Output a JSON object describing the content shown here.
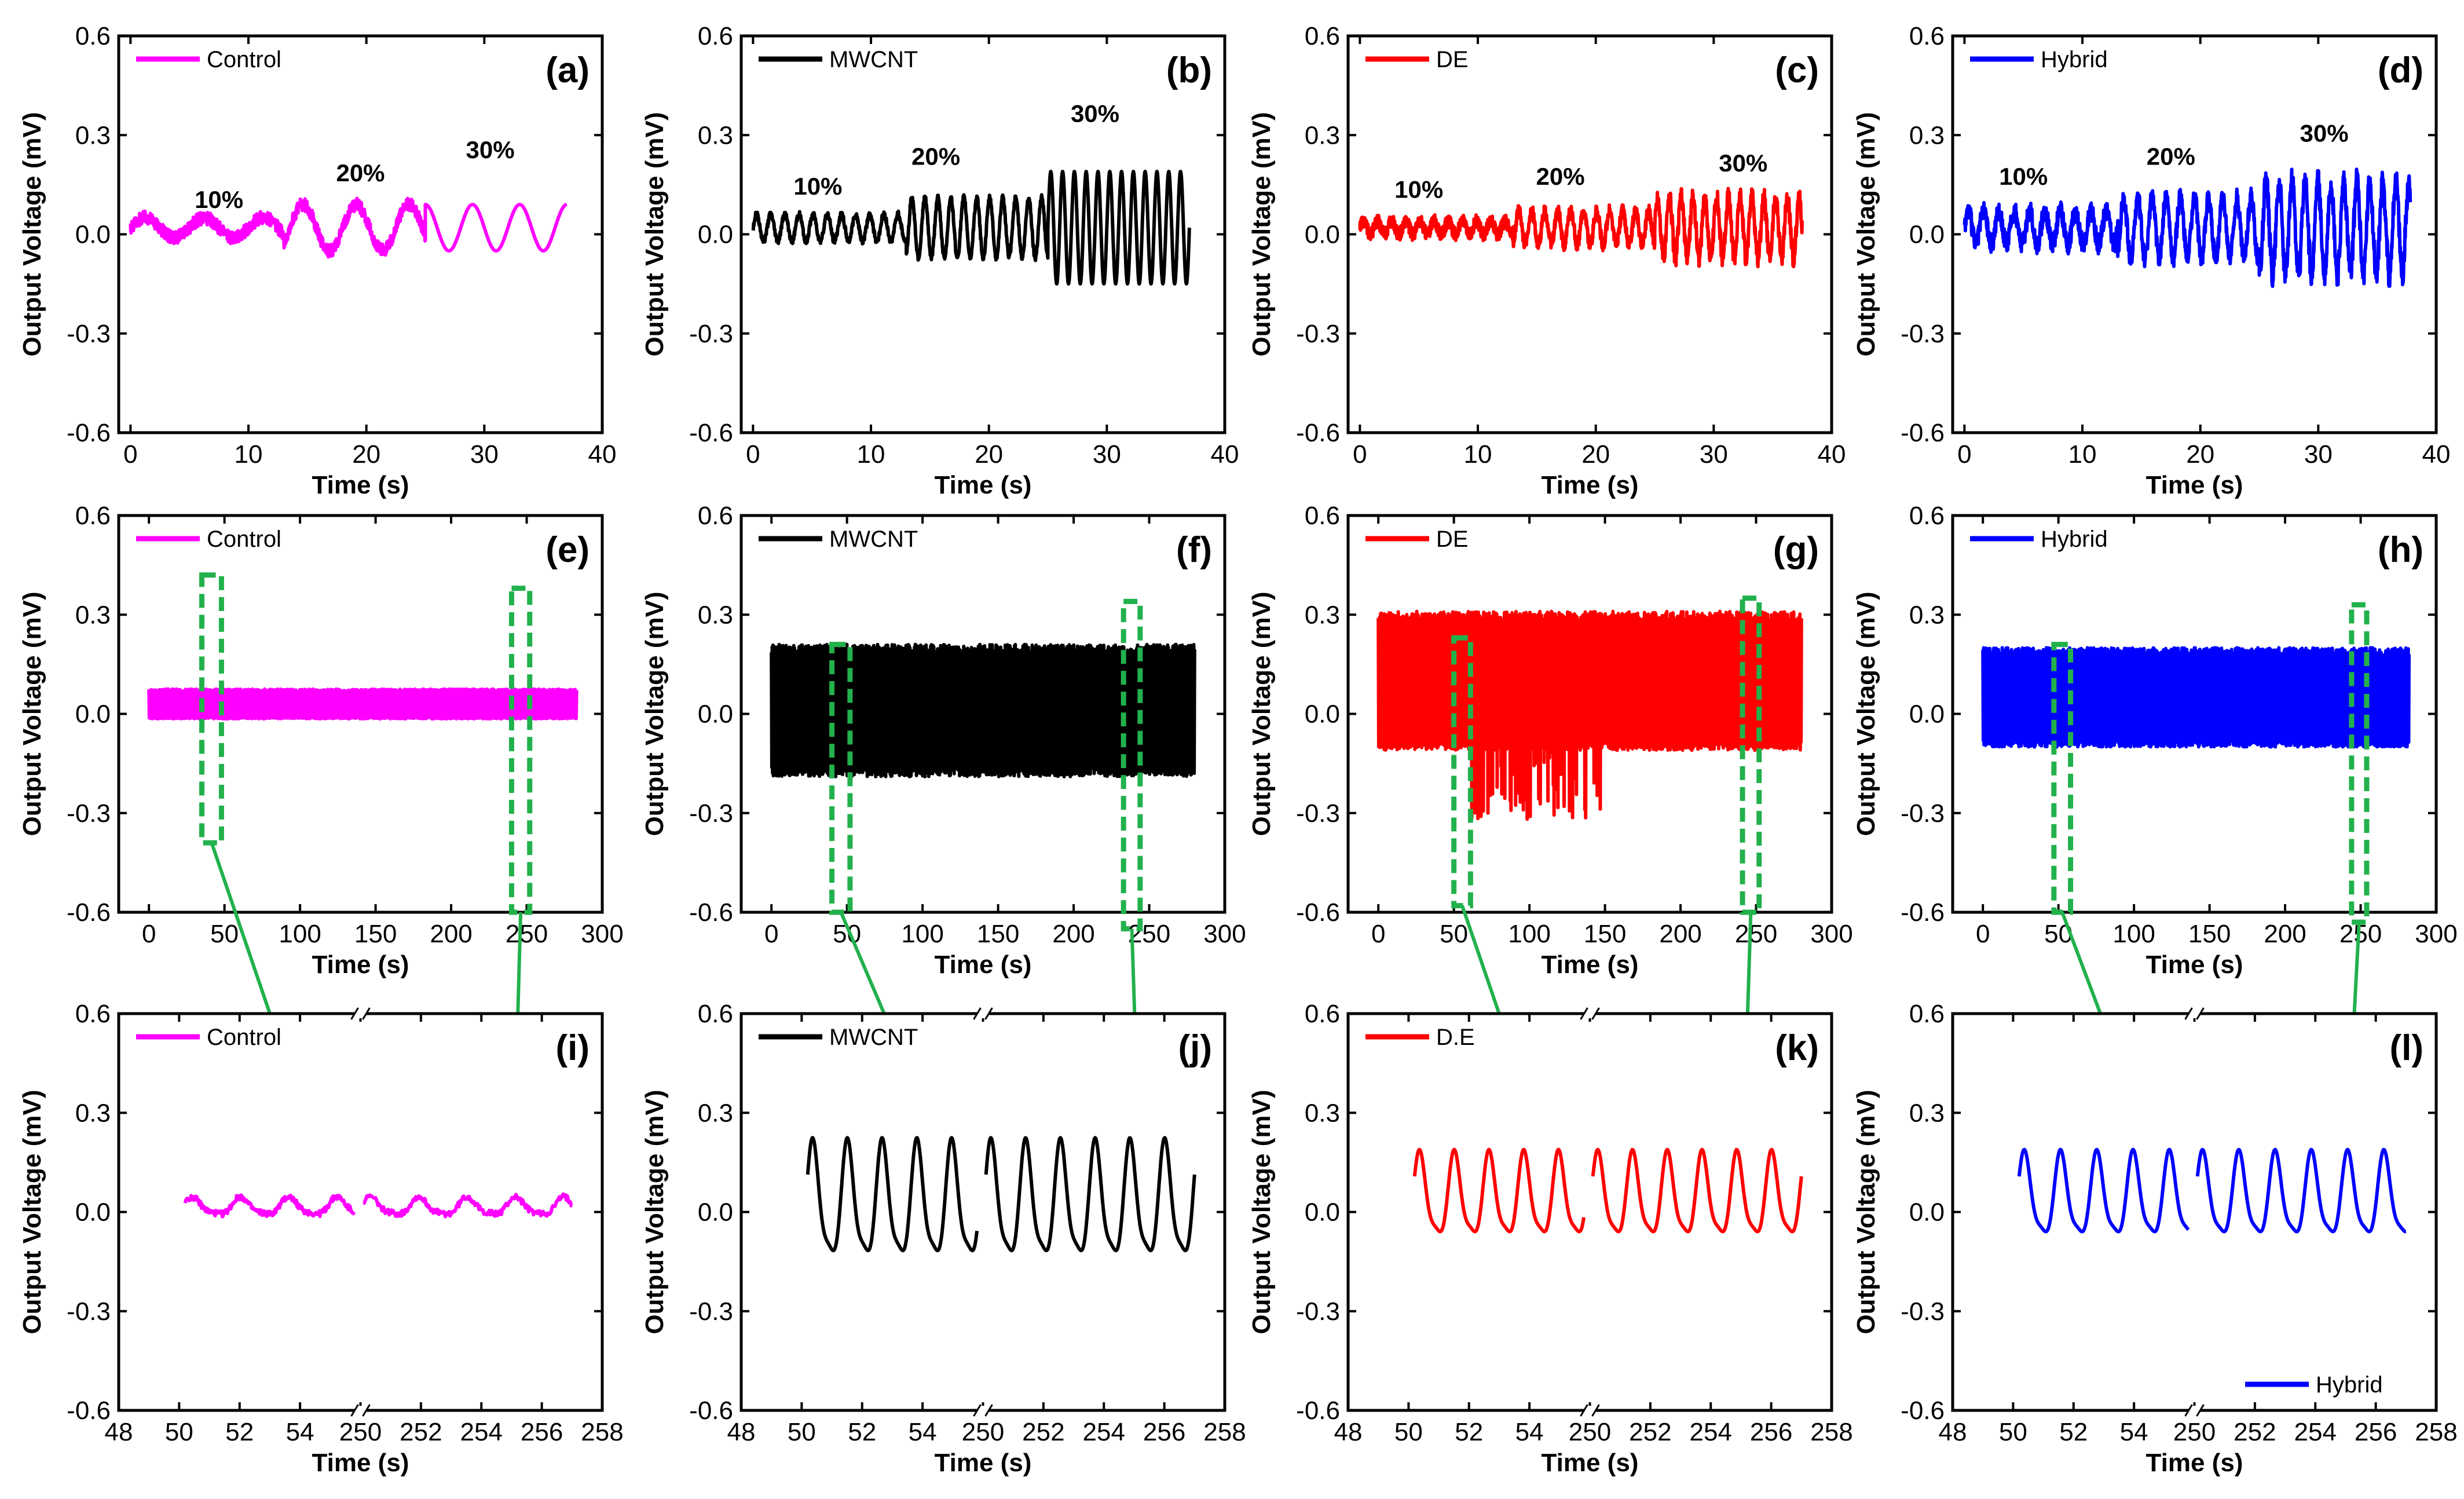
{
  "colors": {
    "Control": "#ff00ff",
    "MWCNT": "#000000",
    "DE": "#ff0000",
    "Hybrid": "#0000ff",
    "zoom": "#22b14c"
  },
  "chart_data": [
    {
      "id": "a",
      "type": "line",
      "panel_label": "(a)",
      "legend": "Control",
      "series_key": "Control",
      "xlabel": "Time (s)",
      "ylabel": "Output Voltage (mV)",
      "xlim": [
        -1,
        40
      ],
      "ylim": [
        -0.6,
        0.6
      ],
      "xticks": [
        0,
        10,
        20,
        30,
        40
      ],
      "yticks": [
        -0.6,
        -0.3,
        0.0,
        0.3,
        0.6
      ],
      "ytick_labels": [
        "-0.6",
        "-0.3",
        "0.0",
        "0.3",
        "0.6"
      ],
      "legend_pos": "top-left",
      "signal": {
        "kind": "ramp",
        "t0": 0,
        "t1": 37,
        "segments": [
          [
            0,
            13,
            5,
            0.03,
            0.02
          ],
          [
            13,
            25,
            4.5,
            0.07,
            0.02
          ],
          [
            25,
            37,
            4,
            0.07,
            0.0
          ]
        ]
      },
      "annotations": [
        {
          "text": "10%",
          "x": 7.5,
          "y": 0.08
        },
        {
          "text": "20%",
          "x": 19.5,
          "y": 0.16
        },
        {
          "text": "30%",
          "x": 30.5,
          "y": 0.23
        }
      ]
    },
    {
      "id": "b",
      "type": "line",
      "panel_label": "(b)",
      "legend": "MWCNT",
      "series_key": "MWCNT",
      "xlabel": "Time (s)",
      "ylabel": "Output Voltage (mV)",
      "xlim": [
        -1,
        40
      ],
      "ylim": [
        -0.6,
        0.6
      ],
      "xticks": [
        0,
        10,
        20,
        30,
        40
      ],
      "yticks": [
        -0.6,
        -0.3,
        0.0,
        0.3,
        0.6
      ],
      "ytick_labels": [
        "-0.6",
        "-0.3",
        "0.0",
        "0.3",
        "0.6"
      ],
      "legend_pos": "top-left",
      "signal": {
        "kind": "ramp",
        "t0": 0,
        "t1": 37,
        "segments": [
          [
            0,
            13,
            1.2,
            0.04,
            0.01
          ],
          [
            13,
            25,
            1.1,
            0.09,
            0.01
          ],
          [
            25,
            37,
            1.0,
            0.17,
            0.0
          ]
        ]
      },
      "annotations": [
        {
          "text": "10%",
          "x": 5.5,
          "y": 0.12
        },
        {
          "text": "20%",
          "x": 15.5,
          "y": 0.21
        },
        {
          "text": "30%",
          "x": 29,
          "y": 0.34
        }
      ]
    },
    {
      "id": "c",
      "type": "line",
      "panel_label": "(c)",
      "legend": "DE",
      "series_key": "DE",
      "xlabel": "Time (s)",
      "ylabel": "Output Voltage (mV)",
      "xlim": [
        -1,
        40
      ],
      "ylim": [
        -0.6,
        0.6
      ],
      "xticks": [
        0,
        10,
        20,
        30,
        40
      ],
      "yticks": [
        -0.6,
        -0.3,
        0.0,
        0.3,
        0.6
      ],
      "ytick_labels": [
        "-0.6",
        "-0.3",
        "0.0",
        "0.3",
        "0.6"
      ],
      "legend_pos": "top-left",
      "signal": {
        "kind": "ramp",
        "t0": 0,
        "t1": 37.5,
        "segments": [
          [
            0,
            13,
            1.2,
            0.02,
            0.02
          ],
          [
            13,
            25,
            1.1,
            0.05,
            0.02
          ],
          [
            25,
            37.5,
            1.0,
            0.09,
            0.03
          ]
        ]
      },
      "annotations": [
        {
          "text": "10%",
          "x": 5,
          "y": 0.11
        },
        {
          "text": "20%",
          "x": 17,
          "y": 0.15
        },
        {
          "text": "30%",
          "x": 32.5,
          "y": 0.19
        }
      ]
    },
    {
      "id": "d",
      "type": "line",
      "panel_label": "(d)",
      "legend": "Hybrid",
      "series_key": "Hybrid",
      "xlabel": "Time (s)",
      "ylabel": "Output Voltage (mV)",
      "xlim": [
        -1,
        40
      ],
      "ylim": [
        -0.6,
        0.6
      ],
      "xticks": [
        0,
        10,
        20,
        30,
        40
      ],
      "yticks": [
        -0.6,
        -0.3,
        0.0,
        0.3,
        0.6
      ],
      "ytick_labels": [
        "-0.6",
        "-0.3",
        "0.0",
        "0.3",
        "0.6"
      ],
      "legend_pos": "top-left",
      "signal": {
        "kind": "ramp",
        "t0": 0,
        "t1": 37.8,
        "segments": [
          [
            0,
            13,
            1.3,
            0.05,
            0.03
          ],
          [
            13,
            25,
            1.2,
            0.09,
            0.03
          ],
          [
            25,
            37.8,
            1.1,
            0.14,
            0.04
          ]
        ]
      },
      "annotations": [
        {
          "text": "10%",
          "x": 5,
          "y": 0.15
        },
        {
          "text": "20%",
          "x": 17.5,
          "y": 0.21
        },
        {
          "text": "30%",
          "x": 30.5,
          "y": 0.28
        }
      ]
    },
    {
      "id": "e",
      "type": "line",
      "panel_label": "(e)",
      "legend": "Control",
      "series_key": "Control",
      "xlabel": "Time (s)",
      "ylabel": "Output Voltage (mV)",
      "xlim": [
        -20,
        300
      ],
      "ylim": [
        -0.6,
        0.6
      ],
      "xticks": [
        0,
        50,
        100,
        150,
        200,
        250,
        300
      ],
      "yticks": [
        -0.6,
        -0.3,
        0.0,
        0.3,
        0.6
      ],
      "ytick_labels": [
        "-0.6",
        "-0.3",
        "0.0",
        "0.3",
        "0.6"
      ],
      "legend_pos": "top-left",
      "signal": {
        "kind": "dense",
        "t0": 0,
        "t1": 283,
        "center": 0.025,
        "amp_hi": 0.05,
        "amp_lo": 0.04
      },
      "zoom_boxes": [
        {
          "x0": 35,
          "x1": 48,
          "y0": -0.39,
          "y1": 0.42
        },
        {
          "x0": 240,
          "x1": 252,
          "y0": -0.6,
          "y1": 0.38
        }
      ]
    },
    {
      "id": "f",
      "type": "line",
      "panel_label": "(f)",
      "legend": "MWCNT",
      "series_key": "MWCNT",
      "xlabel": "Time (s)",
      "ylabel": "Output Voltage (mV)",
      "xlim": [
        -20,
        300
      ],
      "ylim": [
        -0.6,
        0.6
      ],
      "xticks": [
        0,
        50,
        100,
        150,
        200,
        250,
        300
      ],
      "yticks": [
        -0.6,
        -0.3,
        0.0,
        0.3,
        0.6
      ],
      "ytick_labels": [
        "-0.6",
        "-0.3",
        "0.0",
        "0.3",
        "0.6"
      ],
      "legend_pos": "top-left",
      "signal": {
        "kind": "dense",
        "t0": 0,
        "t1": 280,
        "center": 0.01,
        "amp_hi": 0.2,
        "amp_lo": 0.2
      },
      "zoom_boxes": [
        {
          "x0": 40,
          "x1": 52,
          "y0": -0.6,
          "y1": 0.21
        },
        {
          "x0": 233,
          "x1": 244,
          "y0": -0.65,
          "y1": 0.34
        }
      ]
    },
    {
      "id": "g",
      "type": "line",
      "panel_label": "(g)",
      "legend": "DE",
      "series_key": "DE",
      "xlabel": "Time (s)",
      "ylabel": "Output Voltage (mV)",
      "xlim": [
        -20,
        300
      ],
      "ylim": [
        -0.6,
        0.6
      ],
      "xticks": [
        0,
        50,
        100,
        150,
        200,
        250,
        300
      ],
      "yticks": [
        -0.6,
        -0.3,
        0.0,
        0.3,
        0.6
      ],
      "ytick_labels": [
        "-0.6",
        "-0.3",
        "0.0",
        "0.3",
        "0.6"
      ],
      "legend_pos": "top-left",
      "signal": {
        "kind": "dense",
        "t0": 0,
        "t1": 280,
        "center": 0.06,
        "amp_hi": 0.25,
        "amp_lo": 0.17,
        "spikes": {
          "t0": 60,
          "t1": 148,
          "min": -0.38
        }
      },
      "zoom_boxes": [
        {
          "x0": 50,
          "x1": 61,
          "y0": -0.58,
          "y1": 0.23
        },
        {
          "x0": 241,
          "x1": 252,
          "y0": -0.6,
          "y1": 0.35
        }
      ]
    },
    {
      "id": "h",
      "type": "line",
      "panel_label": "(h)",
      "legend": "Hybrid",
      "series_key": "Hybrid",
      "xlabel": "Time (s)",
      "ylabel": "Output Voltage (mV)",
      "xlim": [
        -20,
        300
      ],
      "ylim": [
        -0.6,
        0.6
      ],
      "xticks": [
        0,
        50,
        100,
        150,
        200,
        250,
        300
      ],
      "yticks": [
        -0.6,
        -0.3,
        0.0,
        0.3,
        0.6
      ],
      "ytick_labels": [
        "-0.6",
        "-0.3",
        "0.0",
        "0.3",
        "0.6"
      ],
      "legend_pos": "top-left",
      "signal": {
        "kind": "dense",
        "t0": 0,
        "t1": 282,
        "center": 0.04,
        "amp_hi": 0.16,
        "amp_lo": 0.14
      },
      "zoom_boxes": [
        {
          "x0": 47,
          "x1": 58,
          "y0": -0.6,
          "y1": 0.21
        },
        {
          "x0": 244,
          "x1": 254,
          "y0": -0.63,
          "y1": 0.33
        }
      ]
    },
    {
      "id": "i",
      "type": "line",
      "panel_label": "(i)",
      "legend": "Control",
      "series_key": "Control",
      "xlabel": "Time (s)",
      "ylabel": "Output Voltage (mV)",
      "xlim": [
        48,
        258
      ],
      "ylim": [
        -0.6,
        0.6
      ],
      "broken_axis": true,
      "xticks": [
        48,
        50,
        52,
        54,
        56,
        250,
        252,
        254,
        256,
        258
      ],
      "xtick_labels": [
        "48",
        "50",
        "52",
        "54",
        "",
        "250",
        "252",
        "254",
        "256",
        "258"
      ],
      "yticks": [
        -0.6,
        -0.3,
        0.0,
        0.3,
        0.6
      ],
      "ytick_labels": [
        "-0.6",
        "-0.3",
        "0.0",
        "0.3",
        "0.6"
      ],
      "legend_pos": "top-left",
      "signal": {
        "kind": "zoom",
        "center": 0.015,
        "amp": 0.025,
        "period": 1.6,
        "offset_low": 0.0,
        "noise": 0.018
      }
    },
    {
      "id": "j",
      "type": "line",
      "panel_label": "(j)",
      "legend": "MWCNT",
      "series_key": "MWCNT",
      "xlabel": "Time (s)",
      "ylabel": "Output Voltage (mV)",
      "xlim": [
        48,
        258
      ],
      "ylim": [
        -0.6,
        0.6
      ],
      "broken_axis": true,
      "xticks": [
        48,
        50,
        52,
        54,
        56,
        250,
        252,
        254,
        256,
        258
      ],
      "xtick_labels": [
        "48",
        "50",
        "52",
        "54",
        "",
        "250",
        "252",
        "254",
        "256",
        "258"
      ],
      "yticks": [
        -0.6,
        -0.3,
        0.0,
        0.3,
        0.6
      ],
      "ytick_labels": [
        "-0.6",
        "-0.3",
        "0.0",
        "0.3",
        "0.6"
      ],
      "legend_pos": "top-left",
      "signal": {
        "kind": "zoom",
        "center": 0.02,
        "amp": 0.165,
        "period": 1.15,
        "offset_low": 0.0,
        "noise": 0.0
      }
    },
    {
      "id": "k",
      "type": "line",
      "panel_label": "(k)",
      "legend": "D.E",
      "series_key": "DE",
      "xlabel": "Time (s)",
      "ylabel": "Output Voltage (mV)",
      "xlim": [
        48,
        258
      ],
      "ylim": [
        -0.6,
        0.6
      ],
      "broken_axis": true,
      "xticks": [
        48,
        50,
        52,
        54,
        56,
        250,
        252,
        254,
        256,
        258
      ],
      "xtick_labels": [
        "48",
        "50",
        "52",
        "54",
        "",
        "250",
        "252",
        "254",
        "256",
        "258"
      ],
      "yticks": [
        -0.6,
        -0.3,
        0.0,
        0.3,
        0.6
      ],
      "ytick_labels": [
        "-0.6",
        "-0.3",
        "0.0",
        "0.3",
        "0.6"
      ],
      "legend_pos": "top-left",
      "signal": {
        "kind": "zoom",
        "center": 0.04,
        "amp": 0.12,
        "period": 1.15,
        "offset_low": 0.0,
        "noise": 0.0
      }
    },
    {
      "id": "l",
      "type": "line",
      "panel_label": "(l)",
      "legend": "Hybrid",
      "series_key": "Hybrid",
      "xlabel": "Time (s)",
      "ylabel": "Output Voltage (mV)",
      "xlim": [
        48,
        258
      ],
      "ylim": [
        -0.6,
        0.6
      ],
      "broken_axis": true,
      "xticks": [
        48,
        50,
        52,
        54,
        56,
        250,
        252,
        254,
        256,
        258
      ],
      "xtick_labels": [
        "48",
        "50",
        "52",
        "54",
        "",
        "250",
        "252",
        "254",
        "256",
        "258"
      ],
      "yticks": [
        -0.6,
        -0.3,
        0.0,
        0.3,
        0.6
      ],
      "ytick_labels": [
        "-0.6",
        "-0.3",
        "0.0",
        "0.3",
        "0.6"
      ],
      "legend_pos": "bottom-right",
      "signal": {
        "kind": "zoom",
        "center": 0.04,
        "amp": 0.12,
        "period": 1.2,
        "offset_low": 0.0,
        "noise": 0.0
      }
    }
  ]
}
